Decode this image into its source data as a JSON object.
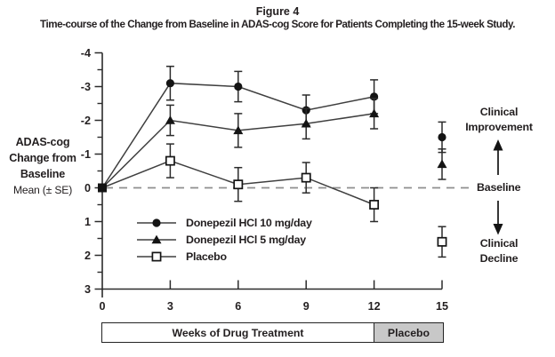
{
  "figure": {
    "title": "Figure 4",
    "subtitle": "Time-course of the Change from Baseline in ADAS-cog Score for Patients Completing the 15-week Study."
  },
  "y_axis_label": {
    "line1": "ADAS-cog",
    "line2": "Change from",
    "line3": "Baseline",
    "line4": "Mean (± SE)"
  },
  "annotations": {
    "improvement_line1": "Clinical",
    "improvement_line2": "Improvement",
    "baseline": "Baseline",
    "decline_line1": "Clinical",
    "decline_line2": "Decline"
  },
  "treatment_bar": {
    "drug_label": "Weeks of Drug Treatment",
    "placebo_label": "Placebo"
  },
  "chart_data": {
    "type": "line",
    "title": "Figure 4",
    "x": [
      0,
      3,
      6,
      9,
      12,
      15
    ],
    "xticks": [
      0,
      3,
      6,
      9,
      12,
      15
    ],
    "yticks": [
      -4,
      -3,
      -2,
      -1,
      0,
      1,
      2,
      3
    ],
    "ylim": [
      -4,
      3
    ],
    "xlim": [
      0,
      15
    ],
    "y_axis_inverted": true,
    "grid": false,
    "baseline_value": 0,
    "line_connected_through_week": 12,
    "washout_week": 15,
    "origin_marker": "filled-square",
    "legend_position": "inside-lower-left",
    "series": [
      {
        "name": "Donepezil HCl 10 mg/day",
        "marker": "filled-circle",
        "values": [
          0,
          -3.1,
          -3.0,
          -2.3,
          -2.7,
          -1.5
        ],
        "se": [
          0,
          0.5,
          0.45,
          0.45,
          0.5,
          0.45
        ]
      },
      {
        "name": "Donepezil HCl 5 mg/day",
        "marker": "filled-triangle",
        "values": [
          0,
          -2.0,
          -1.7,
          -1.9,
          -2.2,
          -0.7
        ],
        "se": [
          0,
          0.45,
          0.5,
          0.45,
          0.45,
          0.45
        ]
      },
      {
        "name": "Placebo",
        "marker": "open-square",
        "values": [
          0,
          -0.8,
          -0.1,
          -0.3,
          0.5,
          1.6
        ],
        "se": [
          0,
          0.5,
          0.5,
          0.45,
          0.5,
          0.45
        ]
      }
    ]
  },
  "colors": {
    "series_line": "#3f3f3f",
    "marker": "#141414",
    "axis": "#2b2b2b",
    "baseline_dash": "#8f8f8f",
    "text": "#231f20",
    "placebo_box_fill": "#c8c8c8"
  }
}
